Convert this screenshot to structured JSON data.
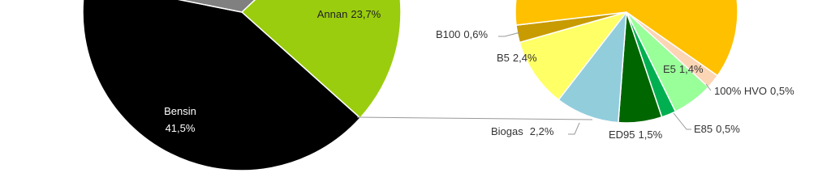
{
  "chart_data": [
    {
      "type": "pie",
      "categories": [
        "Annan",
        "Bensin",
        null
      ],
      "values": [
        23.7,
        41.5,
        34.8
      ],
      "value_labels": [
        "23,7%",
        "41,5%",
        null
      ],
      "colors": [
        "#9acd0e",
        "#000000",
        "#808080"
      ]
    },
    {
      "type": "pie",
      "categories": [
        "100% HVO",
        "E5",
        "E85",
        "ED95",
        "Biogas",
        "B5",
        "B100",
        null
      ],
      "values": [
        0.5,
        1.4,
        0.5,
        1.5,
        2.2,
        2.4,
        0.6,
        14.6
      ],
      "value_labels": [
        "0,5%",
        "1,4%",
        "0,5%",
        "1,5%",
        "2,2%",
        "2,4%",
        "0,6%",
        null
      ],
      "colors": [
        "#fcd5b4",
        "#99ff99",
        "#00b050",
        "#006600",
        "#92cddc",
        "#ffff66",
        "#c89b00",
        "#ffc000"
      ]
    }
  ]
}
